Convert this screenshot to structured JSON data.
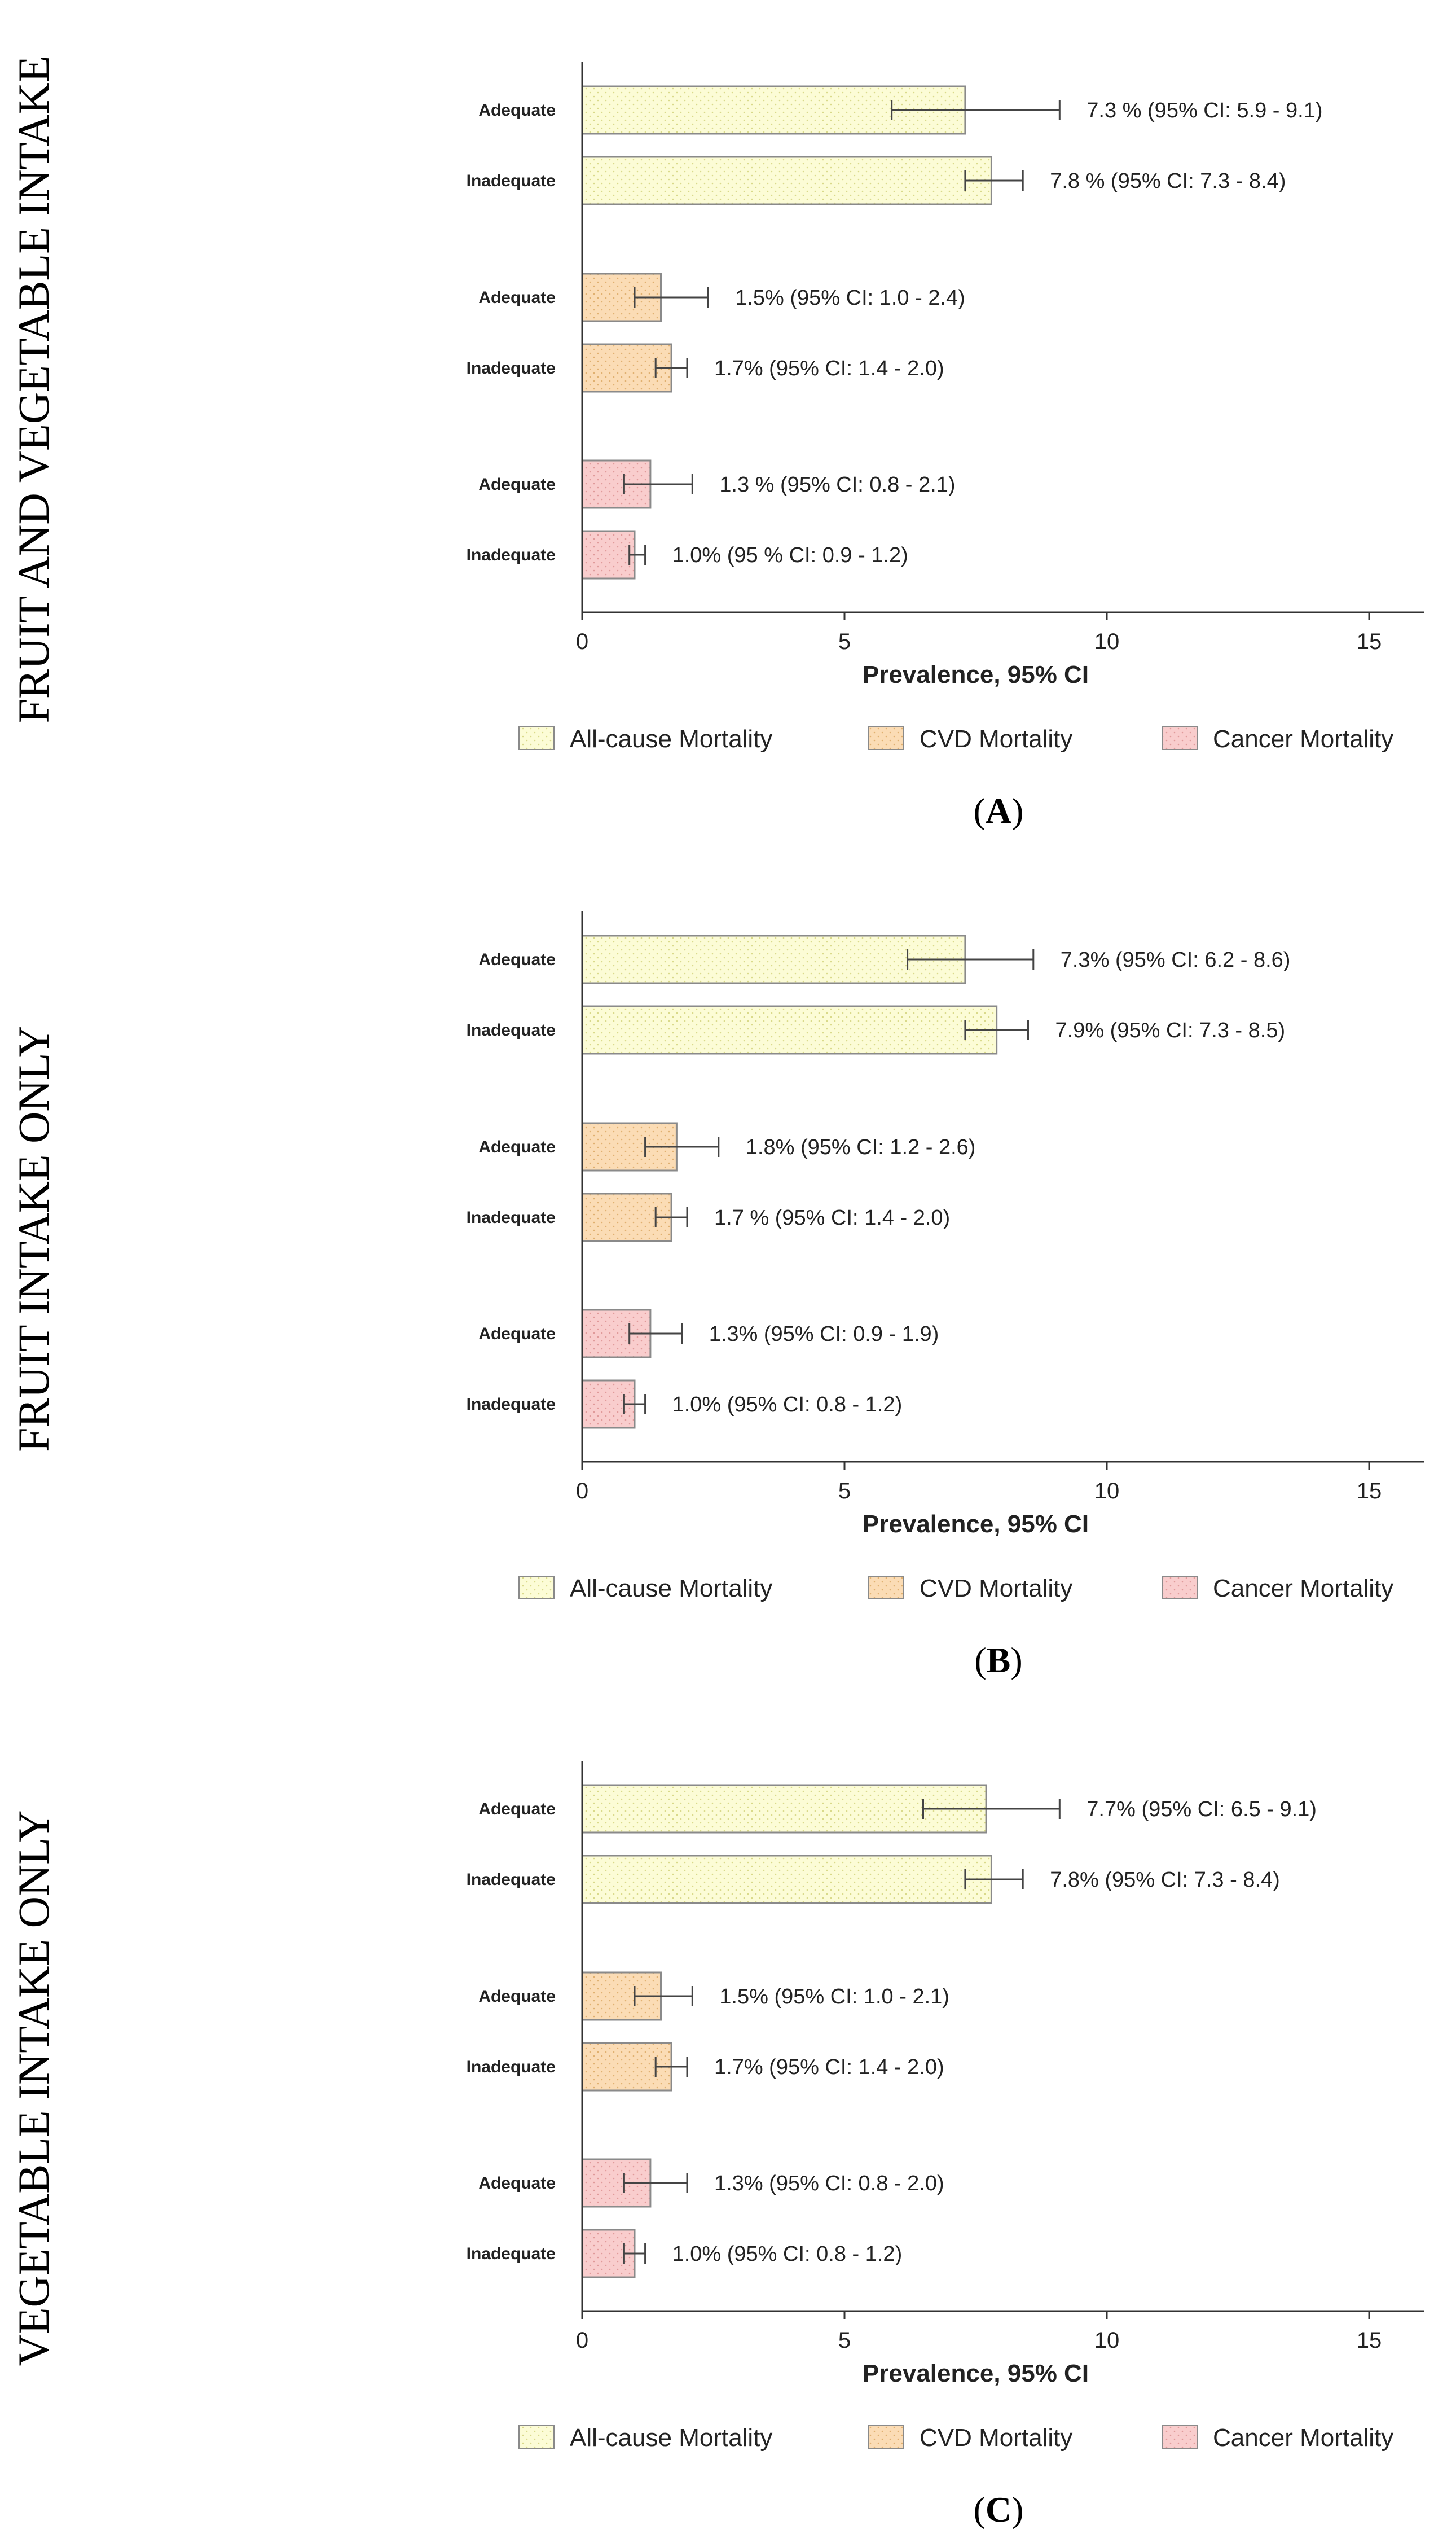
{
  "colors": {
    "all_cause": "#fcfcd6",
    "cvd": "#fbdcb5",
    "cancer": "#f9cdcd",
    "bar_border": "#8a8a8a",
    "axis": "#333333"
  },
  "chart_data": [
    {
      "type": "bar",
      "orientation": "horizontal",
      "panel_letter": "A",
      "side_label": "FRUIT AND VEGETABLE INTAKE",
      "xlabel": "Prevalence, 95% CI",
      "xlim": [
        0,
        16
      ],
      "xticks": [
        0,
        5,
        10,
        15
      ],
      "legend": [
        "All-cause Mortality",
        "CVD Mortality",
        "Cancer Mortality"
      ],
      "bars": [
        {
          "group": "All-cause Mortality",
          "category": "Adequate",
          "value": 7.3,
          "ci": [
            5.9,
            9.1
          ],
          "label": "7.3 % (95% CI: 5.9 - 9.1)"
        },
        {
          "group": "All-cause Mortality",
          "category": "Inadequate",
          "value": 7.8,
          "ci": [
            7.3,
            8.4
          ],
          "label": "7.8 % (95% CI: 7.3 - 8.4)"
        },
        {
          "group": "CVD Mortality",
          "category": "Adequate",
          "value": 1.5,
          "ci": [
            1.0,
            2.4
          ],
          "label": "1.5% (95% CI: 1.0 - 2.4)"
        },
        {
          "group": "CVD Mortality",
          "category": "Inadequate",
          "value": 1.7,
          "ci": [
            1.4,
            2.0
          ],
          "label": "1.7% (95% CI: 1.4 - 2.0)"
        },
        {
          "group": "Cancer Mortality",
          "category": "Adequate",
          "value": 1.3,
          "ci": [
            0.8,
            2.1
          ],
          "label": "1.3 % (95% CI: 0.8 - 2.1)"
        },
        {
          "group": "Cancer Mortality",
          "category": "Inadequate",
          "value": 1.0,
          "ci": [
            0.9,
            1.2
          ],
          "label": "1.0% (95 % CI: 0.9 - 1.2)"
        }
      ]
    },
    {
      "type": "bar",
      "orientation": "horizontal",
      "panel_letter": "B",
      "side_label": "FRUIT INTAKE ONLY",
      "xlabel": "Prevalence, 95% CI",
      "xlim": [
        0,
        16
      ],
      "xticks": [
        0,
        5,
        10,
        15
      ],
      "legend": [
        "All-cause Mortality",
        "CVD Mortality",
        "Cancer Mortality"
      ],
      "bars": [
        {
          "group": "All-cause Mortality",
          "category": "Adequate",
          "value": 7.3,
          "ci": [
            6.2,
            8.6
          ],
          "label": "7.3% (95% CI: 6.2 - 8.6)"
        },
        {
          "group": "All-cause Mortality",
          "category": "Inadequate",
          "value": 7.9,
          "ci": [
            7.3,
            8.5
          ],
          "label": "7.9% (95% CI: 7.3 - 8.5)"
        },
        {
          "group": "CVD Mortality",
          "category": "Adequate",
          "value": 1.8,
          "ci": [
            1.2,
            2.6
          ],
          "label": "1.8% (95% CI: 1.2 - 2.6)"
        },
        {
          "group": "CVD Mortality",
          "category": "Inadequate",
          "value": 1.7,
          "ci": [
            1.4,
            2.0
          ],
          "label": "1.7 % (95% CI: 1.4 - 2.0)"
        },
        {
          "group": "Cancer Mortality",
          "category": "Adequate",
          "value": 1.3,
          "ci": [
            0.9,
            1.9
          ],
          "label": "1.3% (95% CI: 0.9 - 1.9)"
        },
        {
          "group": "Cancer Mortality",
          "category": "Inadequate",
          "value": 1.0,
          "ci": [
            0.8,
            1.2
          ],
          "label": "1.0% (95% CI: 0.8 - 1.2)"
        }
      ]
    },
    {
      "type": "bar",
      "orientation": "horizontal",
      "panel_letter": "C",
      "side_label": "VEGETABLE INTAKE ONLY",
      "xlabel": "Prevalence, 95% CI",
      "xlim": [
        0,
        16
      ],
      "xticks": [
        0,
        5,
        10,
        15
      ],
      "legend": [
        "All-cause Mortality",
        "CVD Mortality",
        "Cancer Mortality"
      ],
      "bars": [
        {
          "group": "All-cause Mortality",
          "category": "Adequate",
          "value": 7.7,
          "ci": [
            6.5,
            9.1
          ],
          "label": "7.7% (95% CI: 6.5 - 9.1)"
        },
        {
          "group": "All-cause Mortality",
          "category": "Inadequate",
          "value": 7.8,
          "ci": [
            7.3,
            8.4
          ],
          "label": "7.8% (95% CI: 7.3 - 8.4)"
        },
        {
          "group": "CVD Mortality",
          "category": "Adequate",
          "value": 1.5,
          "ci": [
            1.0,
            2.1
          ],
          "label": "1.5% (95% CI: 1.0 - 2.1)"
        },
        {
          "group": "CVD Mortality",
          "category": "Inadequate",
          "value": 1.7,
          "ci": [
            1.4,
            2.0
          ],
          "label": "1.7% (95% CI: 1.4 - 2.0)"
        },
        {
          "group": "Cancer Mortality",
          "category": "Adequate",
          "value": 1.3,
          "ci": [
            0.8,
            2.0
          ],
          "label": "1.3% (95% CI: 0.8 - 2.0)"
        },
        {
          "group": "Cancer Mortality",
          "category": "Inadequate",
          "value": 1.0,
          "ci": [
            0.8,
            1.2
          ],
          "label": "1.0% (95% CI: 0.8 - 1.2)"
        }
      ]
    }
  ]
}
